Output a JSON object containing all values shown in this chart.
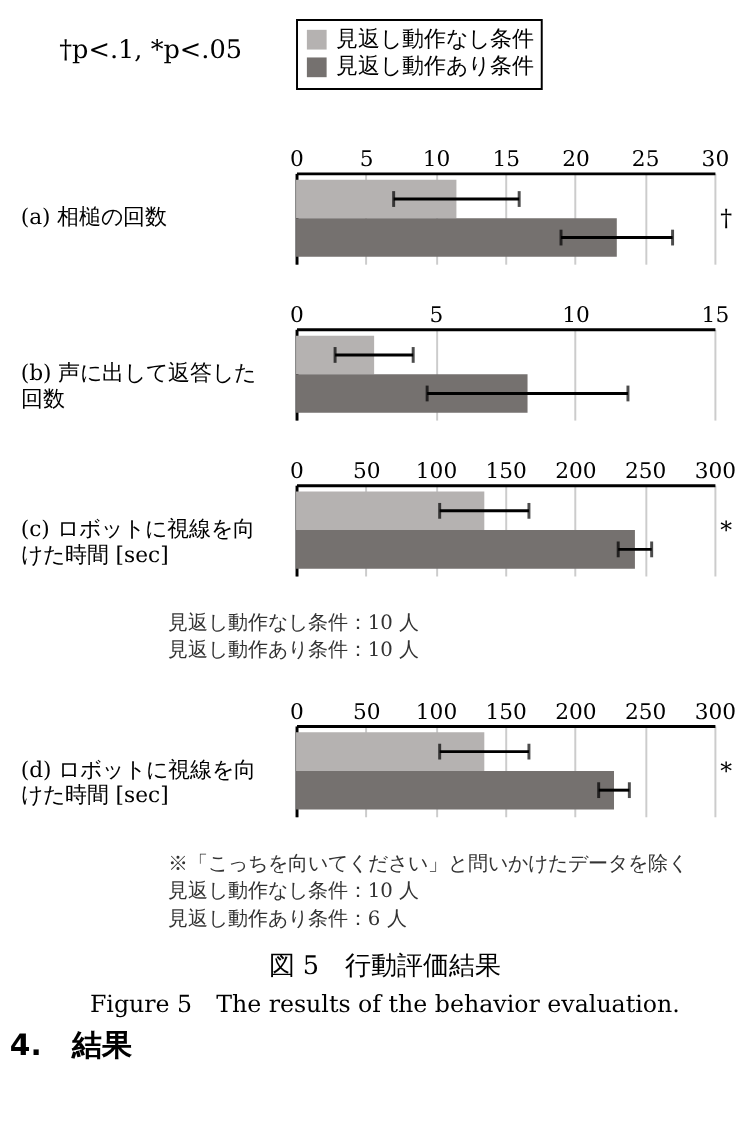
{
  "chart_data": [
    {
      "type": "bar",
      "orientation": "horizontal",
      "categories": [
        "(a) 相槌の回数"
      ],
      "legend": "top",
      "grid": "x",
      "xlim": [
        0,
        30
      ],
      "xticks": [
        0,
        5,
        10,
        15,
        20,
        25,
        30
      ],
      "series": [
        {
          "name": "見返し動作なし条件",
          "color": "#b5b2b1",
          "values": [
            11.5
          ],
          "errors": [
            4.5
          ]
        },
        {
          "name": "見返し動作あり条件",
          "color": "#75716f",
          "values": [
            23
          ],
          "errors": [
            4
          ]
        }
      ],
      "annotations": [
        "†p<.1, *p<.05",
        "†"
      ]
    },
    {
      "type": "bar",
      "orientation": "horizontal",
      "categories": [
        "(b) 声に出して返答した回数"
      ],
      "grid": "x",
      "xlim": [
        0,
        15
      ],
      "xticks": [
        0,
        5,
        10,
        15
      ],
      "series": [
        {
          "color": "#b5b2b1",
          "values": [
            2.8
          ],
          "errors": [
            1.4
          ]
        },
        {
          "color": "#75716f",
          "values": [
            8.3
          ],
          "errors": [
            3.6
          ]
        }
      ]
    },
    {
      "type": "bar",
      "orientation": "horizontal",
      "categories": [
        "(c) ロボットに視線を向けた時間 [sec]"
      ],
      "grid": "x",
      "xlim": [
        0,
        300
      ],
      "xticks": [
        0,
        50,
        100,
        150,
        200,
        250,
        300
      ],
      "series": [
        {
          "color": "#b5b2b1",
          "values": [
            135
          ],
          "errors": [
            32
          ]
        },
        {
          "color": "#75716f",
          "values": [
            243
          ],
          "errors": [
            12
          ]
        }
      ],
      "annotations": [
        "*",
        "見返し動作なし条件：10 人",
        "見返し動作あり条件：10 人"
      ]
    },
    {
      "type": "bar",
      "orientation": "horizontal",
      "categories": [
        "(d) ロボットに視線を向けた時間 [sec]"
      ],
      "grid": "x",
      "xlim": [
        0,
        300
      ],
      "xticks": [
        0,
        50,
        100,
        150,
        200,
        250,
        300
      ],
      "series": [
        {
          "color": "#b5b2b1",
          "values": [
            135
          ],
          "errors": [
            32
          ]
        },
        {
          "color": "#75716f",
          "values": [
            228
          ],
          "errors": [
            11
          ]
        }
      ],
      "annotations": [
        "*",
        "※「こっちを向いてください」と問いかけたデータを除く",
        "見返し動作なし条件：10 人",
        "見返し動作あり条件：6 人",
        "図 5　行動評価結果",
        "Figure 5　The results of the behavior evaluation.",
        "4.　結果"
      ]
    }
  ]
}
